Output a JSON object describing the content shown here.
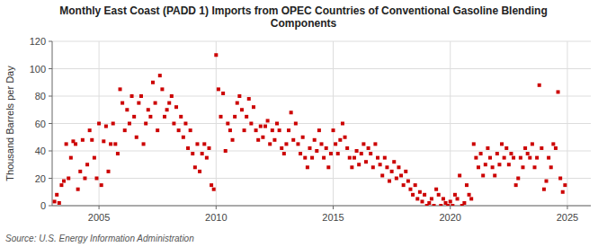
{
  "chart_data": {
    "type": "scatter",
    "title": "Monthly East Coast (PADD 1) Imports from OPEC Countries of Conventional Gasoline Blending\nComponents",
    "ylabel": "Thousand Barrels per Day",
    "source": "Source: U.S. Energy Information Administration",
    "color": "#cc0000",
    "marker": "square",
    "grid": true,
    "xlim": [
      2003.0,
      2026.0
    ],
    "ylim": [
      0,
      120
    ],
    "xticks": [
      2005,
      2010,
      2015,
      2020,
      2025
    ],
    "yticks": [
      0,
      20,
      40,
      60,
      80,
      100,
      120
    ],
    "x": [
      2003.1,
      2003.2,
      2003.3,
      2003.4,
      2003.5,
      2003.6,
      2003.7,
      2003.8,
      2003.9,
      2004.0,
      2004.1,
      2004.2,
      2004.3,
      2004.4,
      2004.5,
      2004.6,
      2004.7,
      2004.8,
      2004.9,
      2005.0,
      2005.1,
      2005.2,
      2005.3,
      2005.4,
      2005.5,
      2005.6,
      2005.7,
      2005.8,
      2005.9,
      2006.0,
      2006.1,
      2006.2,
      2006.3,
      2006.4,
      2006.5,
      2006.6,
      2006.7,
      2006.8,
      2006.9,
      2007.0,
      2007.1,
      2007.2,
      2007.3,
      2007.4,
      2007.5,
      2007.6,
      2007.7,
      2007.8,
      2007.9,
      2008.0,
      2008.1,
      2008.2,
      2008.3,
      2008.4,
      2008.5,
      2008.6,
      2008.7,
      2008.8,
      2008.9,
      2009.0,
      2009.1,
      2009.2,
      2009.3,
      2009.4,
      2009.5,
      2009.6,
      2009.7,
      2009.8,
      2009.9,
      2010.0,
      2010.1,
      2010.2,
      2010.3,
      2010.4,
      2010.5,
      2010.6,
      2010.7,
      2010.8,
      2010.9,
      2011.0,
      2011.1,
      2011.2,
      2011.3,
      2011.4,
      2011.5,
      2011.6,
      2011.7,
      2011.8,
      2011.9,
      2012.0,
      2012.1,
      2012.2,
      2012.3,
      2012.4,
      2012.5,
      2012.6,
      2012.7,
      2012.8,
      2012.9,
      2013.0,
      2013.1,
      2013.2,
      2013.3,
      2013.4,
      2013.5,
      2013.6,
      2013.7,
      2013.8,
      2013.9,
      2014.0,
      2014.1,
      2014.2,
      2014.3,
      2014.4,
      2014.5,
      2014.6,
      2014.7,
      2014.8,
      2014.9,
      2015.0,
      2015.1,
      2015.2,
      2015.3,
      2015.4,
      2015.5,
      2015.6,
      2015.7,
      2015.8,
      2015.9,
      2016.0,
      2016.1,
      2016.2,
      2016.3,
      2016.4,
      2016.5,
      2016.6,
      2016.7,
      2016.8,
      2016.9,
      2017.0,
      2017.1,
      2017.2,
      2017.3,
      2017.4,
      2017.5,
      2017.6,
      2017.7,
      2017.8,
      2017.9,
      2018.0,
      2018.1,
      2018.2,
      2018.3,
      2018.4,
      2018.5,
      2018.6,
      2018.7,
      2018.8,
      2018.9,
      2019.0,
      2019.1,
      2019.2,
      2019.3,
      2019.4,
      2019.5,
      2019.6,
      2019.7,
      2019.8,
      2019.9,
      2020.0,
      2020.1,
      2020.2,
      2020.3,
      2020.4,
      2020.5,
      2020.6,
      2020.7,
      2020.8,
      2020.9,
      2021.0,
      2021.1,
      2021.2,
      2021.3,
      2021.4,
      2021.5,
      2021.6,
      2021.7,
      2021.8,
      2021.9,
      2022.0,
      2022.1,
      2022.2,
      2022.3,
      2022.4,
      2022.5,
      2022.6,
      2022.7,
      2022.8,
      2022.9,
      2023.0,
      2023.1,
      2023.2,
      2023.3,
      2023.4,
      2023.5,
      2023.6,
      2023.7,
      2023.8,
      2023.9,
      2024.0,
      2024.1,
      2024.2,
      2024.3,
      2024.4,
      2024.5,
      2024.6,
      2024.7,
      2024.8,
      2024.9
    ],
    "values": [
      3,
      8,
      2,
      15,
      18,
      45,
      20,
      35,
      47,
      45,
      12,
      25,
      48,
      20,
      30,
      55,
      48,
      35,
      20,
      60,
      15,
      47,
      58,
      25,
      45,
      60,
      45,
      38,
      85,
      75,
      55,
      70,
      60,
      80,
      65,
      50,
      75,
      80,
      45,
      60,
      70,
      65,
      90,
      75,
      55,
      95,
      85,
      65,
      70,
      75,
      80,
      60,
      72,
      55,
      65,
      50,
      60,
      42,
      55,
      38,
      28,
      45,
      25,
      38,
      45,
      35,
      42,
      15,
      12,
      110,
      85,
      65,
      82,
      40,
      60,
      55,
      48,
      65,
      75,
      80,
      70,
      55,
      65,
      78,
      60,
      72,
      55,
      48,
      58,
      50,
      58,
      62,
      45,
      55,
      48,
      60,
      55,
      42,
      38,
      45,
      55,
      68,
      48,
      60,
      45,
      38,
      50,
      35,
      28,
      42,
      35,
      48,
      40,
      55,
      45,
      35,
      42,
      28,
      38,
      55,
      45,
      38,
      48,
      60,
      50,
      42,
      35,
      28,
      35,
      40,
      30,
      38,
      45,
      32,
      42,
      38,
      28,
      45,
      35,
      30,
      22,
      35,
      28,
      18,
      25,
      32,
      20,
      28,
      22,
      15,
      25,
      18,
      12,
      8,
      15,
      5,
      10,
      3,
      8,
      0,
      2,
      5,
      0,
      12,
      8,
      0,
      5,
      2,
      0,
      3,
      0,
      8,
      5,
      22,
      0,
      2,
      15,
      8,
      5,
      45,
      35,
      28,
      38,
      22,
      30,
      42,
      35,
      28,
      22,
      38,
      30,
      45,
      35,
      42,
      30,
      38,
      35,
      15,
      20,
      35,
      28,
      42,
      38,
      35,
      45,
      28,
      35,
      88,
      42,
      12,
      18,
      35,
      28,
      45,
      42,
      83,
      20,
      10,
      15
    ]
  }
}
